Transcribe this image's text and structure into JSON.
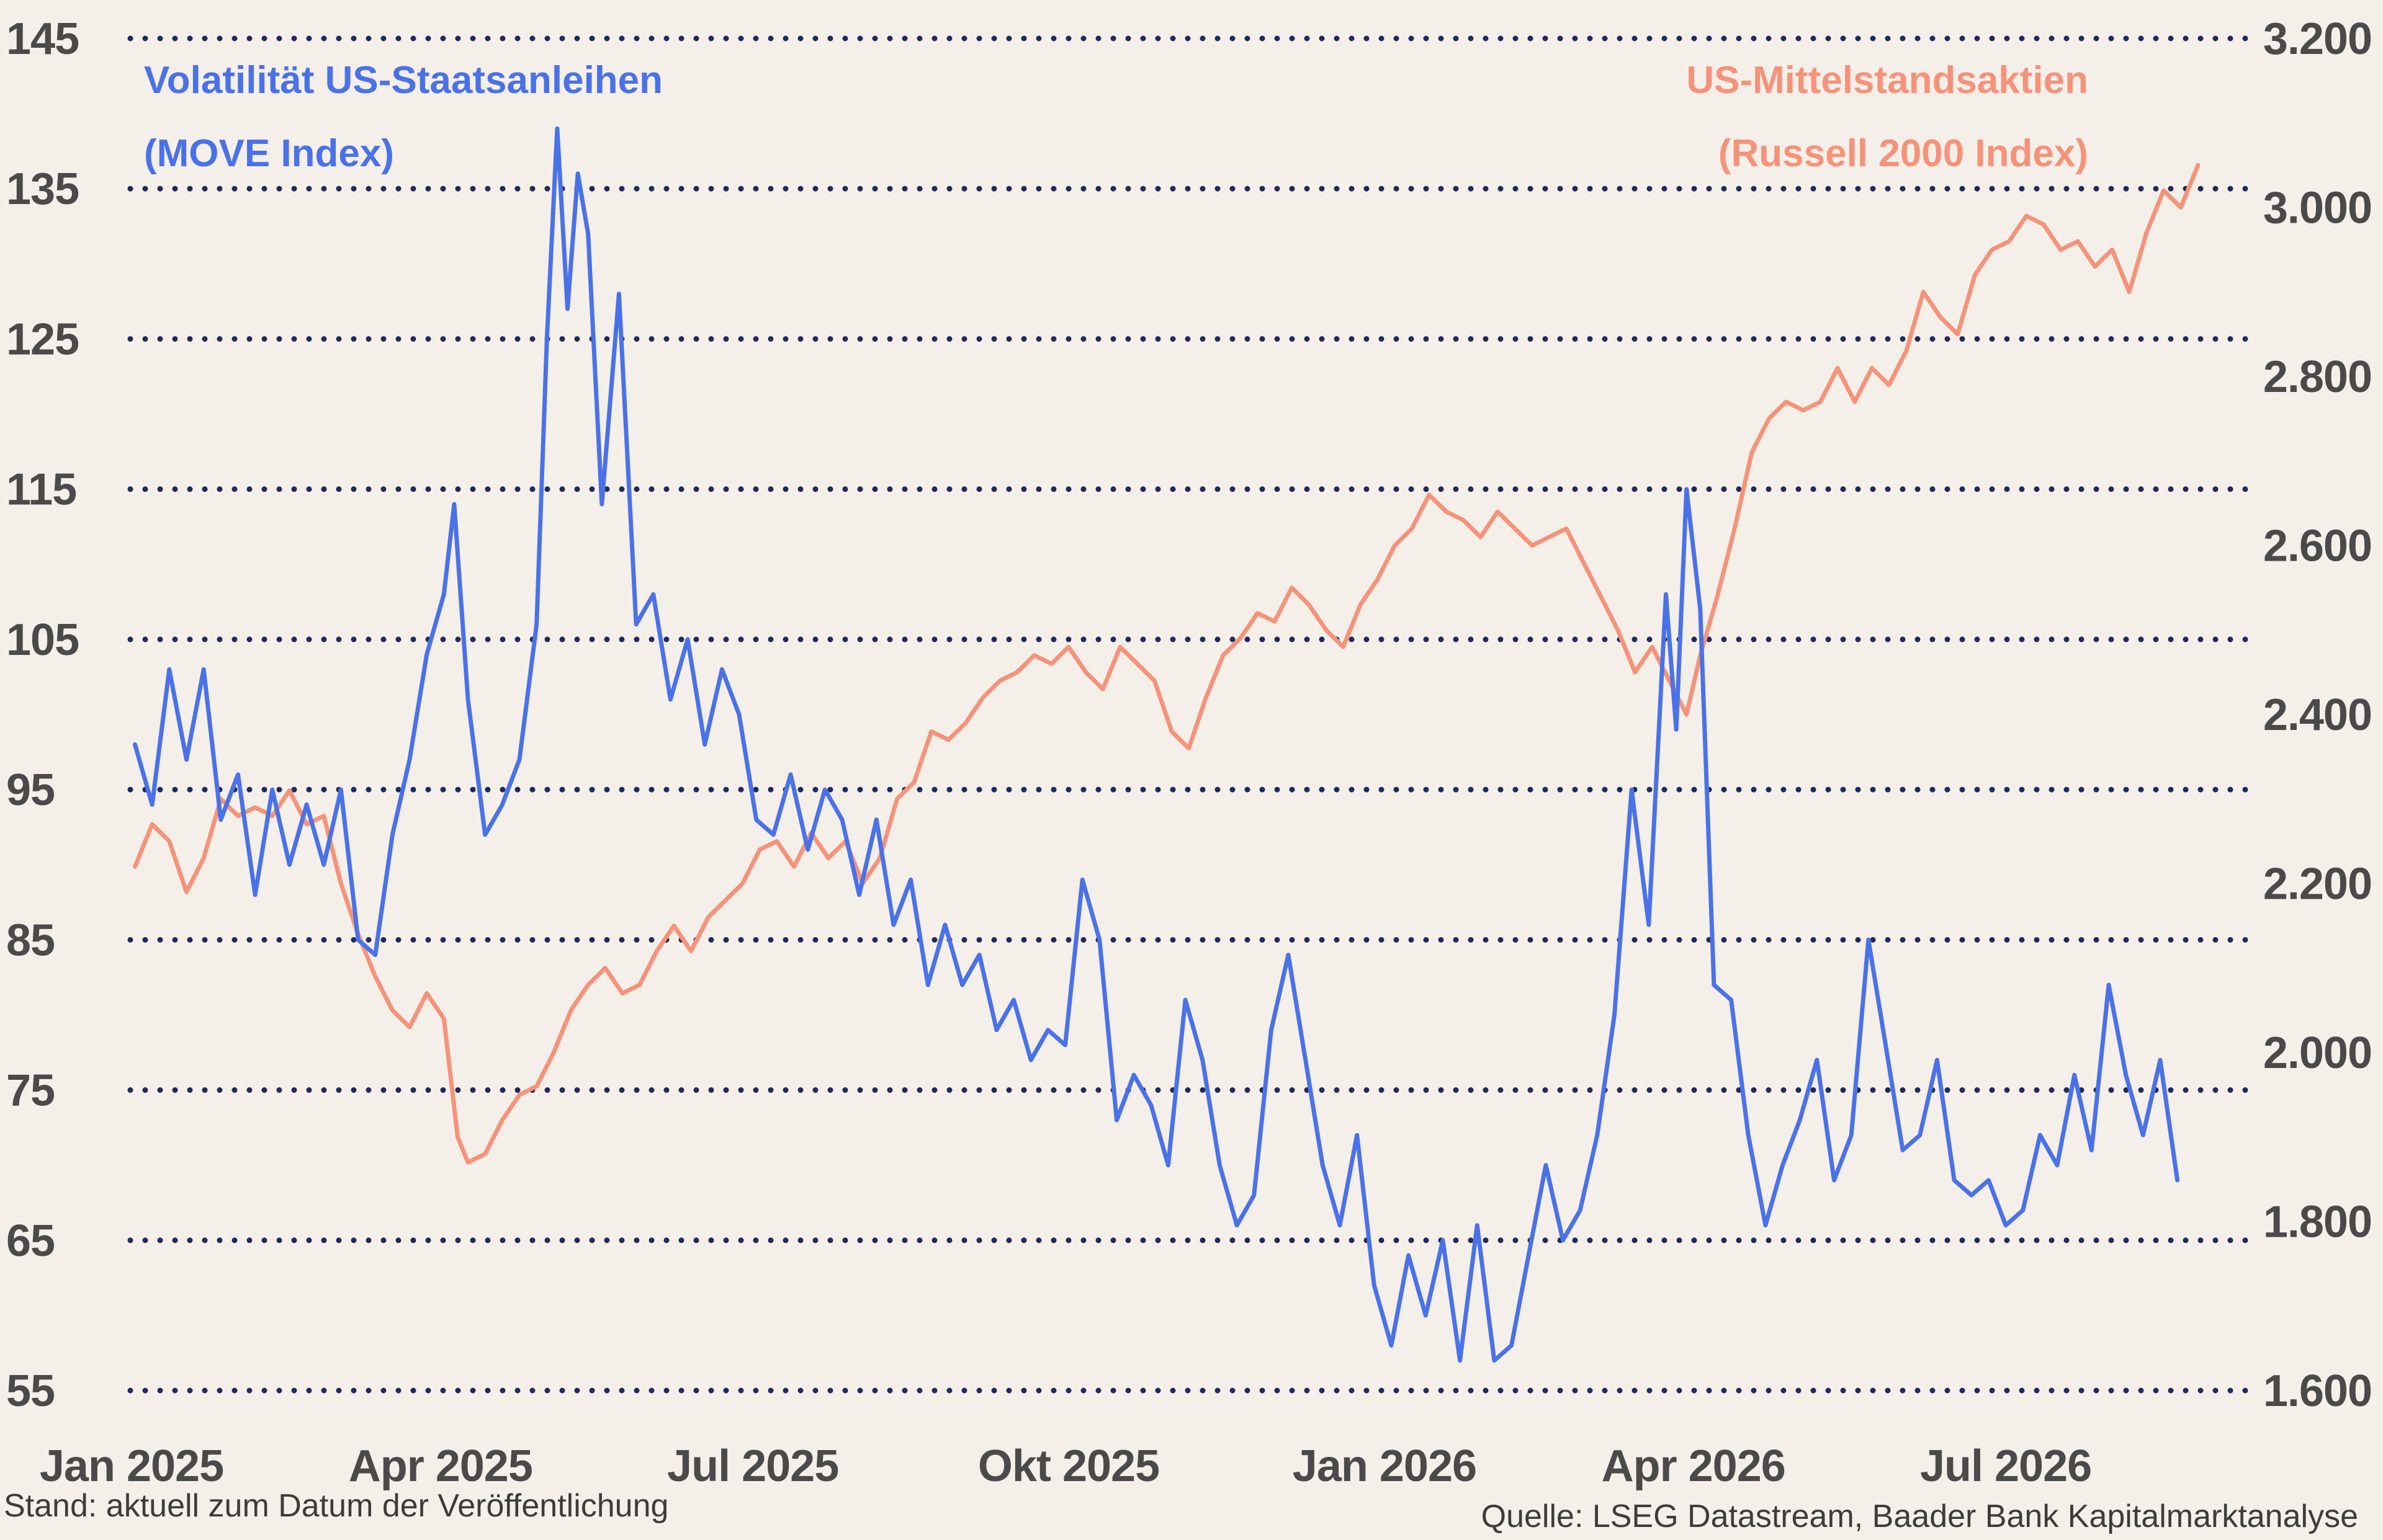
{
  "chart_data": {
    "type": "line",
    "left_series": {
      "name_line1": "Volatilität US-Staatsanleihen",
      "name_line2": "(MOVE Index)",
      "color": "#4a72e8",
      "axis_ticks": [
        "145",
        "135",
        "125",
        "115",
        "105",
        "95",
        "85",
        "75",
        "65",
        "55"
      ],
      "ylim": [
        55,
        145
      ],
      "points": [
        [
          "2025-01-02",
          98
        ],
        [
          "2025-01-07",
          94
        ],
        [
          "2025-01-12",
          103
        ],
        [
          "2025-01-17",
          97
        ],
        [
          "2025-01-22",
          103
        ],
        [
          "2025-01-27",
          93
        ],
        [
          "2025-02-01",
          96
        ],
        [
          "2025-02-06",
          88
        ],
        [
          "2025-02-11",
          95
        ],
        [
          "2025-02-16",
          90
        ],
        [
          "2025-02-21",
          94
        ],
        [
          "2025-02-26",
          90
        ],
        [
          "2025-03-03",
          95
        ],
        [
          "2025-03-08",
          85
        ],
        [
          "2025-03-13",
          84
        ],
        [
          "2025-03-18",
          92
        ],
        [
          "2025-03-23",
          97
        ],
        [
          "2025-03-28",
          104
        ],
        [
          "2025-04-02",
          108
        ],
        [
          "2025-04-05",
          114
        ],
        [
          "2025-04-09",
          101
        ],
        [
          "2025-04-14",
          92
        ],
        [
          "2025-04-19",
          94
        ],
        [
          "2025-04-24",
          97
        ],
        [
          "2025-04-29",
          106
        ],
        [
          "2025-05-02",
          125
        ],
        [
          "2025-05-05",
          139
        ],
        [
          "2025-05-08",
          127
        ],
        [
          "2025-05-11",
          136
        ],
        [
          "2025-05-14",
          132
        ],
        [
          "2025-05-18",
          114
        ],
        [
          "2025-05-23",
          128
        ],
        [
          "2025-05-28",
          106
        ],
        [
          "2025-06-02",
          108
        ],
        [
          "2025-06-07",
          101
        ],
        [
          "2025-06-12",
          105
        ],
        [
          "2025-06-17",
          98
        ],
        [
          "2025-06-22",
          103
        ],
        [
          "2025-06-27",
          100
        ],
        [
          "2025-07-02",
          93
        ],
        [
          "2025-07-07",
          92
        ],
        [
          "2025-07-12",
          96
        ],
        [
          "2025-07-17",
          91
        ],
        [
          "2025-07-22",
          95
        ],
        [
          "2025-07-27",
          93
        ],
        [
          "2025-08-01",
          88
        ],
        [
          "2025-08-06",
          93
        ],
        [
          "2025-08-11",
          86
        ],
        [
          "2025-08-16",
          89
        ],
        [
          "2025-08-21",
          82
        ],
        [
          "2025-08-26",
          86
        ],
        [
          "2025-08-31",
          82
        ],
        [
          "2025-09-05",
          84
        ],
        [
          "2025-09-10",
          79
        ],
        [
          "2025-09-15",
          81
        ],
        [
          "2025-09-20",
          77
        ],
        [
          "2025-09-25",
          79
        ],
        [
          "2025-09-30",
          78
        ],
        [
          "2025-10-05",
          89
        ],
        [
          "2025-10-10",
          85
        ],
        [
          "2025-10-15",
          73
        ],
        [
          "2025-10-20",
          76
        ],
        [
          "2025-10-25",
          74
        ],
        [
          "2025-10-30",
          70
        ],
        [
          "2025-11-04",
          81
        ],
        [
          "2025-11-09",
          77
        ],
        [
          "2025-11-14",
          70
        ],
        [
          "2025-11-19",
          66
        ],
        [
          "2025-11-24",
          68
        ],
        [
          "2025-11-29",
          79
        ],
        [
          "2025-12-04",
          84
        ],
        [
          "2025-12-09",
          77
        ],
        [
          "2025-12-14",
          70
        ],
        [
          "2025-12-19",
          66
        ],
        [
          "2025-12-24",
          72
        ],
        [
          "2025-12-29",
          62
        ],
        [
          "2026-01-03",
          58
        ],
        [
          "2026-01-08",
          64
        ],
        [
          "2026-01-13",
          60
        ],
        [
          "2026-01-18",
          65
        ],
        [
          "2026-01-23",
          57
        ],
        [
          "2026-01-28",
          66
        ],
        [
          "2026-02-02",
          57
        ],
        [
          "2026-02-07",
          58
        ],
        [
          "2026-02-12",
          64
        ],
        [
          "2026-02-17",
          70
        ],
        [
          "2026-02-22",
          65
        ],
        [
          "2026-02-27",
          67
        ],
        [
          "2026-03-04",
          72
        ],
        [
          "2026-03-09",
          80
        ],
        [
          "2026-03-14",
          95
        ],
        [
          "2026-03-19",
          86
        ],
        [
          "2026-03-24",
          108
        ],
        [
          "2026-03-27",
          99
        ],
        [
          "2026-03-30",
          115
        ],
        [
          "2026-04-03",
          107
        ],
        [
          "2026-04-07",
          82
        ],
        [
          "2026-04-12",
          81
        ],
        [
          "2026-04-17",
          72
        ],
        [
          "2026-04-22",
          66
        ],
        [
          "2026-04-27",
          70
        ],
        [
          "2026-05-02",
          73
        ],
        [
          "2026-05-07",
          77
        ],
        [
          "2026-05-12",
          69
        ],
        [
          "2026-05-17",
          72
        ],
        [
          "2026-05-22",
          85
        ],
        [
          "2026-05-27",
          78
        ],
        [
          "2026-06-01",
          71
        ],
        [
          "2026-06-06",
          72
        ],
        [
          "2026-06-11",
          77
        ],
        [
          "2026-06-16",
          69
        ],
        [
          "2026-06-21",
          68
        ],
        [
          "2026-06-26",
          69
        ],
        [
          "2026-07-01",
          66
        ],
        [
          "2026-07-06",
          67
        ],
        [
          "2026-07-11",
          72
        ],
        [
          "2026-07-16",
          70
        ],
        [
          "2026-07-21",
          76
        ],
        [
          "2026-07-26",
          71
        ],
        [
          "2026-07-31",
          82
        ],
        [
          "2026-08-05",
          76
        ],
        [
          "2026-08-10",
          72
        ],
        [
          "2026-08-15",
          77
        ],
        [
          "2026-08-20",
          69
        ]
      ]
    },
    "right_series": {
      "name_line1": "US-Mittelstandsaktien",
      "name_line2": "(Russell 2000 Index)",
      "color": "#f5937a",
      "axis_ticks": [
        "3.200",
        "3.000",
        "2.800",
        "2.600",
        "2.400",
        "2.200",
        "2.000",
        "1.800",
        "1.600"
      ],
      "ylim": [
        1600,
        3200
      ],
      "points": [
        [
          "2025-01-02",
          2220
        ],
        [
          "2025-01-07",
          2270
        ],
        [
          "2025-01-12",
          2250
        ],
        [
          "2025-01-17",
          2190
        ],
        [
          "2025-01-22",
          2230
        ],
        [
          "2025-01-27",
          2300
        ],
        [
          "2025-02-01",
          2280
        ],
        [
          "2025-02-06",
          2290
        ],
        [
          "2025-02-11",
          2280
        ],
        [
          "2025-02-16",
          2310
        ],
        [
          "2025-02-21",
          2270
        ],
        [
          "2025-02-26",
          2280
        ],
        [
          "2025-03-03",
          2200
        ],
        [
          "2025-03-08",
          2140
        ],
        [
          "2025-03-13",
          2090
        ],
        [
          "2025-03-18",
          2050
        ],
        [
          "2025-03-23",
          2030
        ],
        [
          "2025-03-28",
          2070
        ],
        [
          "2025-04-02",
          2040
        ],
        [
          "2025-04-06",
          1900
        ],
        [
          "2025-04-09",
          1870
        ],
        [
          "2025-04-14",
          1880
        ],
        [
          "2025-04-19",
          1920
        ],
        [
          "2025-04-24",
          1950
        ],
        [
          "2025-04-29",
          1960
        ],
        [
          "2025-05-04",
          2000
        ],
        [
          "2025-05-09",
          2050
        ],
        [
          "2025-05-14",
          2080
        ],
        [
          "2025-05-19",
          2100
        ],
        [
          "2025-05-24",
          2070
        ],
        [
          "2025-05-29",
          2080
        ],
        [
          "2025-06-03",
          2120
        ],
        [
          "2025-06-08",
          2150
        ],
        [
          "2025-06-13",
          2120
        ],
        [
          "2025-06-18",
          2160
        ],
        [
          "2025-06-23",
          2180
        ],
        [
          "2025-06-28",
          2200
        ],
        [
          "2025-07-03",
          2240
        ],
        [
          "2025-07-08",
          2250
        ],
        [
          "2025-07-13",
          2220
        ],
        [
          "2025-07-18",
          2260
        ],
        [
          "2025-07-23",
          2230
        ],
        [
          "2025-07-28",
          2250
        ],
        [
          "2025-08-02",
          2200
        ],
        [
          "2025-08-07",
          2230
        ],
        [
          "2025-08-12",
          2300
        ],
        [
          "2025-08-17",
          2320
        ],
        [
          "2025-08-22",
          2380
        ],
        [
          "2025-08-27",
          2370
        ],
        [
          "2025-09-01",
          2390
        ],
        [
          "2025-09-06",
          2420
        ],
        [
          "2025-09-11",
          2440
        ],
        [
          "2025-09-16",
          2450
        ],
        [
          "2025-09-21",
          2470
        ],
        [
          "2025-09-26",
          2460
        ],
        [
          "2025-10-01",
          2480
        ],
        [
          "2025-10-06",
          2450
        ],
        [
          "2025-10-11",
          2430
        ],
        [
          "2025-10-16",
          2480
        ],
        [
          "2025-10-21",
          2460
        ],
        [
          "2025-10-26",
          2440
        ],
        [
          "2025-10-31",
          2380
        ],
        [
          "2025-11-05",
          2360
        ],
        [
          "2025-11-10",
          2420
        ],
        [
          "2025-11-15",
          2470
        ],
        [
          "2025-11-20",
          2490
        ],
        [
          "2025-11-25",
          2520
        ],
        [
          "2025-11-30",
          2510
        ],
        [
          "2025-12-05",
          2550
        ],
        [
          "2025-12-10",
          2530
        ],
        [
          "2025-12-15",
          2500
        ],
        [
          "2025-12-20",
          2480
        ],
        [
          "2025-12-25",
          2530
        ],
        [
          "2025-12-30",
          2560
        ],
        [
          "2026-01-04",
          2600
        ],
        [
          "2026-01-09",
          2620
        ],
        [
          "2026-01-14",
          2660
        ],
        [
          "2026-01-19",
          2640
        ],
        [
          "2026-01-24",
          2630
        ],
        [
          "2026-01-29",
          2610
        ],
        [
          "2026-02-03",
          2640
        ],
        [
          "2026-02-08",
          2620
        ],
        [
          "2026-02-13",
          2600
        ],
        [
          "2026-02-18",
          2610
        ],
        [
          "2026-02-23",
          2620
        ],
        [
          "2026-02-28",
          2580
        ],
        [
          "2026-03-05",
          2540
        ],
        [
          "2026-03-10",
          2500
        ],
        [
          "2026-03-15",
          2450
        ],
        [
          "2026-03-20",
          2480
        ],
        [
          "2026-03-25",
          2440
        ],
        [
          "2026-03-30",
          2400
        ],
        [
          "2026-04-03",
          2470
        ],
        [
          "2026-04-08",
          2540
        ],
        [
          "2026-04-13",
          2620
        ],
        [
          "2026-04-18",
          2710
        ],
        [
          "2026-04-23",
          2750
        ],
        [
          "2026-04-28",
          2770
        ],
        [
          "2026-05-03",
          2760
        ],
        [
          "2026-05-08",
          2770
        ],
        [
          "2026-05-13",
          2810
        ],
        [
          "2026-05-18",
          2770
        ],
        [
          "2026-05-23",
          2810
        ],
        [
          "2026-05-28",
          2790
        ],
        [
          "2026-06-02",
          2830
        ],
        [
          "2026-06-07",
          2900
        ],
        [
          "2026-06-12",
          2870
        ],
        [
          "2026-06-17",
          2850
        ],
        [
          "2026-06-22",
          2920
        ],
        [
          "2026-06-27",
          2950
        ],
        [
          "2026-07-02",
          2960
        ],
        [
          "2026-07-07",
          2990
        ],
        [
          "2026-07-12",
          2980
        ],
        [
          "2026-07-17",
          2950
        ],
        [
          "2026-07-22",
          2960
        ],
        [
          "2026-07-27",
          2930
        ],
        [
          "2026-08-01",
          2950
        ],
        [
          "2026-08-06",
          2900
        ],
        [
          "2026-08-11",
          2970
        ],
        [
          "2026-08-16",
          3020
        ],
        [
          "2026-08-21",
          3000
        ],
        [
          "2026-08-26",
          3050
        ]
      ]
    },
    "x_ticks": [
      {
        "label": "Jan 2025",
        "date": "2025-01-01"
      },
      {
        "label": "Apr 2025",
        "date": "2025-04-01"
      },
      {
        "label": "Jul 2025",
        "date": "2025-07-01"
      },
      {
        "label": "Okt 2025",
        "date": "2025-10-01"
      },
      {
        "label": "Jan 2026",
        "date": "2026-01-01"
      },
      {
        "label": "Apr 2026",
        "date": "2026-04-01"
      },
      {
        "label": "Jul 2026",
        "date": "2026-07-01"
      }
    ],
    "xlim": [
      "2025-01-01",
      "2026-09-01"
    ],
    "grid": true,
    "grid_color": "#1f2a5c"
  },
  "footer": {
    "left": "Stand: aktuell zum Datum der Veröffentlichung",
    "right": "Quelle: LSEG Datastream, Baader Bank Kapitalmarktanalyse"
  }
}
